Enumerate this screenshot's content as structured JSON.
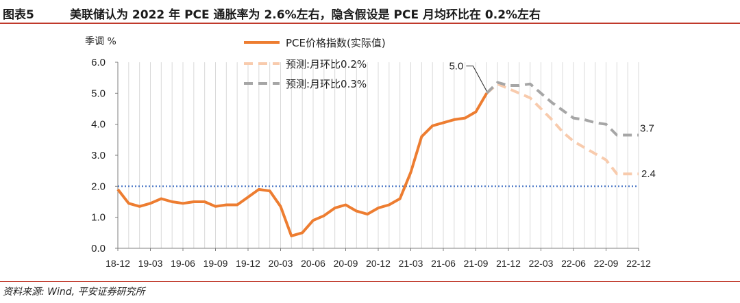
{
  "header": {
    "figure_label": "图表5",
    "title": "美联储认为 2022 年 PCE 通胀率为 2.6%左右，隐含假设是 PCE 月均环比在 0.2%左右"
  },
  "footer": {
    "source": "资料来源: Wind, 平安证券研究所"
  },
  "colors": {
    "actual": "#ed7d31",
    "forecast_02": "#f8cbad",
    "forecast_03": "#a6a6a6",
    "reference": "#4472c4",
    "grid": "#d9d9d9",
    "rule": "#c0392b"
  },
  "chart_data": {
    "type": "line",
    "ylabel": "季调 %",
    "ylim": [
      0,
      6
    ],
    "yticks": [
      "0.0",
      "1.0",
      "2.0",
      "3.0",
      "4.0",
      "5.0",
      "6.0"
    ],
    "x_tick_labels": [
      "18-12",
      "19-03",
      "19-06",
      "19-09",
      "19-12",
      "20-03",
      "20-06",
      "20-09",
      "20-12",
      "21-03",
      "21-06",
      "21-09",
      "21-12",
      "22-03",
      "22-06",
      "22-09",
      "22-12"
    ],
    "x_months": [
      "18-12",
      "19-01",
      "19-02",
      "19-03",
      "19-04",
      "19-05",
      "19-06",
      "19-07",
      "19-08",
      "19-09",
      "19-10",
      "19-11",
      "19-12",
      "20-01",
      "20-02",
      "20-03",
      "20-04",
      "20-05",
      "20-06",
      "20-07",
      "20-08",
      "20-09",
      "20-10",
      "20-11",
      "20-12",
      "21-01",
      "21-02",
      "21-03",
      "21-04",
      "21-05",
      "21-06",
      "21-07",
      "21-08",
      "21-09",
      "21-10",
      "21-11",
      "21-12",
      "22-01",
      "22-02",
      "22-03",
      "22-04",
      "22-05",
      "22-06",
      "22-07",
      "22-08",
      "22-09",
      "22-10",
      "22-11",
      "22-12"
    ],
    "grid": "vertical",
    "legend_position": "top-center",
    "reference_line": {
      "value": 2.0,
      "style": "dotted"
    },
    "series": [
      {
        "name": "PCE价格指数(实际值)",
        "style": "solid",
        "start": "18-12",
        "values": [
          1.9,
          1.45,
          1.35,
          1.45,
          1.6,
          1.5,
          1.45,
          1.5,
          1.5,
          1.35,
          1.4,
          1.4,
          1.65,
          1.9,
          1.85,
          1.35,
          0.4,
          0.5,
          0.9,
          1.05,
          1.3,
          1.4,
          1.2,
          1.1,
          1.3,
          1.4,
          1.6,
          2.45,
          3.6,
          3.95,
          4.05,
          4.15,
          4.2,
          4.4,
          5.0
        ]
      },
      {
        "name": "预测:月环比0.2%",
        "style": "dashed",
        "start": "21-10",
        "values": [
          5.0,
          5.3,
          5.15,
          5.0,
          4.85,
          4.5,
          4.15,
          3.75,
          3.45,
          3.25,
          3.05,
          2.85,
          2.4,
          2.4,
          2.4
        ]
      },
      {
        "name": "预测:月环比0.3%",
        "style": "dashed",
        "start": "21-10",
        "values": [
          5.0,
          5.35,
          5.25,
          5.25,
          5.3,
          5.0,
          4.7,
          4.45,
          4.2,
          4.15,
          4.05,
          4.0,
          3.65,
          3.65,
          3.65
        ]
      }
    ],
    "annotations": [
      {
        "text": "5.0",
        "x": "21-10",
        "y": 5.0
      },
      {
        "text": "3.7",
        "x": "22-12",
        "y": 3.65
      },
      {
        "text": "2.4",
        "x": "22-12",
        "y": 2.4
      }
    ]
  }
}
